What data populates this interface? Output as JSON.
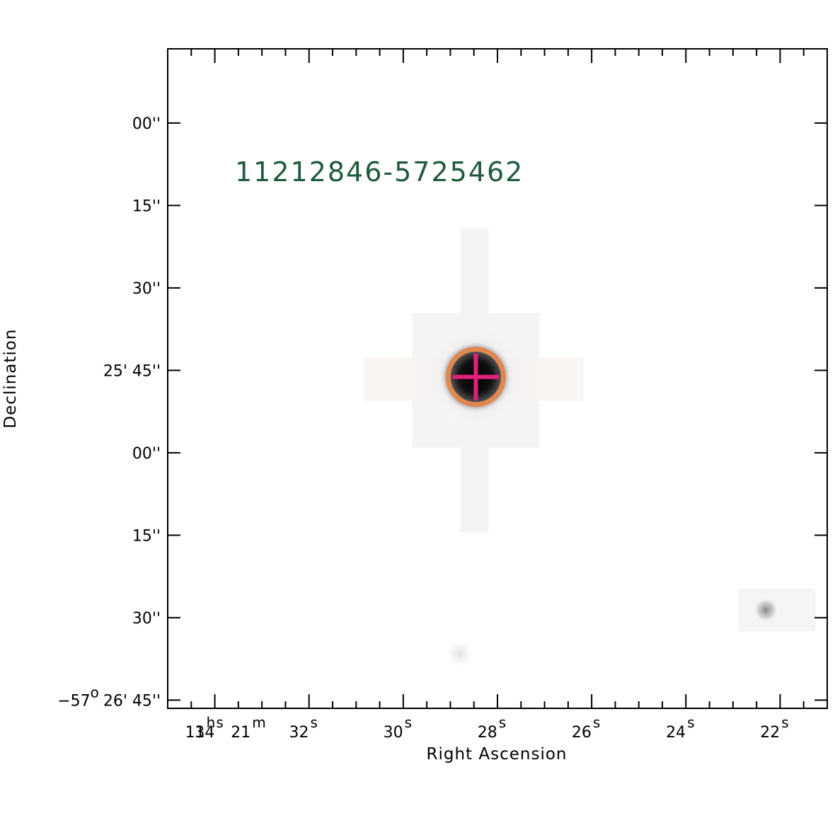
{
  "chart_data": {
    "type": "scatter",
    "title": "11212846-5725462",
    "xlabel": "Right Ascension",
    "ylabel": "Declination",
    "x_ticks": [
      {
        "base": "11",
        "sup": "h"
      },
      {
        "base": "21",
        "sup": "m"
      },
      {
        "base": "34",
        "sup": "s"
      },
      {
        "base": "32",
        "sup": "s"
      },
      {
        "base": "30",
        "sup": "s"
      },
      {
        "base": "28",
        "sup": "s"
      },
      {
        "base": "26",
        "sup": "s"
      },
      {
        "base": "24",
        "sup": "s"
      },
      {
        "base": "22",
        "sup": "s"
      }
    ],
    "x_tick_seconds": [
      34,
      32,
      30,
      28,
      26,
      24,
      22
    ],
    "y_ticks": [
      {
        "value_arcsec": 0,
        "text": "00''"
      },
      {
        "value_arcsec": 15,
        "text": "15''"
      },
      {
        "value_arcsec": 30,
        "text": "30''"
      },
      {
        "value_arcsec": 45,
        "text": "25' 45''"
      },
      {
        "value_arcsec": 60,
        "text": "00''"
      },
      {
        "value_arcsec": 75,
        "text": "15''"
      },
      {
        "value_arcsec": 90,
        "text": "30''"
      },
      {
        "value_arcsec": 105,
        "text": "26' 45''",
        "prefix": "−57",
        "prefix_sup": "o"
      }
    ],
    "xlim_seconds": [
      35.0,
      21.0
    ],
    "ylim_arcsec_below_25_00": [
      -13.5,
      106.5
    ],
    "sources": [
      {
        "name": "target",
        "ra_seconds": 28.46,
        "dec_arcsec": 46.2,
        "brightness": "bright",
        "marked": true
      },
      {
        "name": "faint-source-1",
        "ra_seconds": 22.3,
        "dec_arcsec": 88.6,
        "brightness": "faint"
      },
      {
        "name": "faint-source-2",
        "ra_seconds": 28.8,
        "dec_arcsec": 96.5,
        "brightness": "very faint"
      }
    ],
    "marker": {
      "circle_color": "#e0874f",
      "cross_color": "#e0207a"
    }
  }
}
